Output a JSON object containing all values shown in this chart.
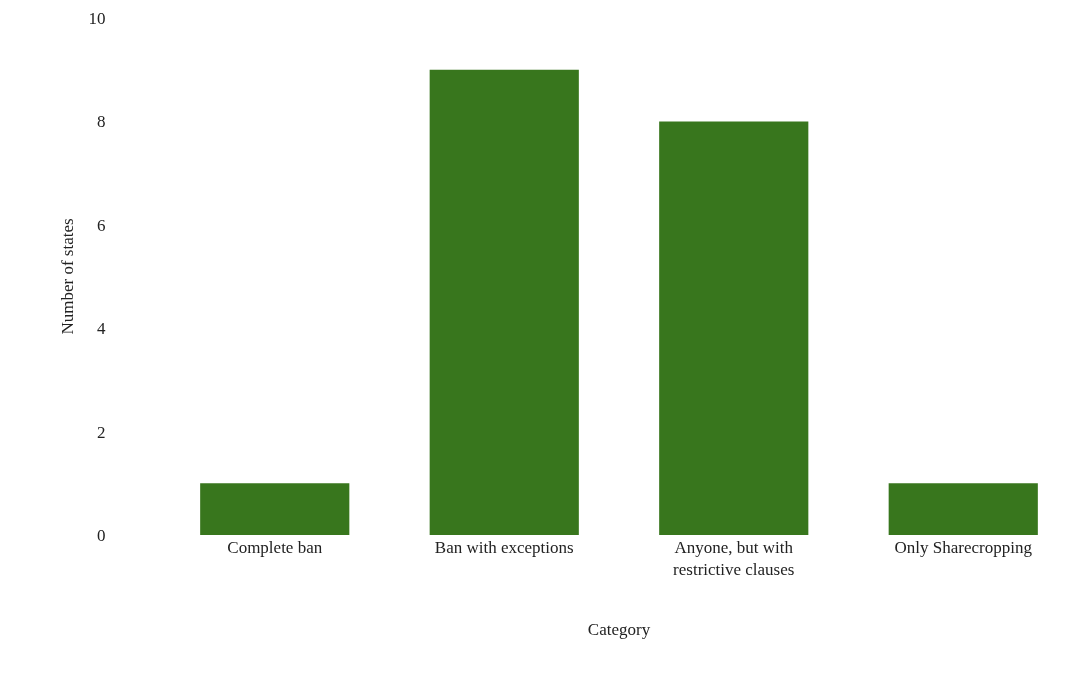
{
  "chart_data": {
    "type": "bar",
    "xlabel": "Category",
    "ylabel": "Number of states",
    "categories": [
      "Complete ban",
      "Ban with exceptions",
      "Anyone, but with restrictive clauses",
      "Only Sharecropping"
    ],
    "values": [
      1,
      9,
      8,
      1
    ],
    "color": "#38761d",
    "ylim": [
      0,
      10
    ],
    "yticks": [
      0,
      2,
      4,
      6,
      8,
      10
    ],
    "grid": false
  }
}
